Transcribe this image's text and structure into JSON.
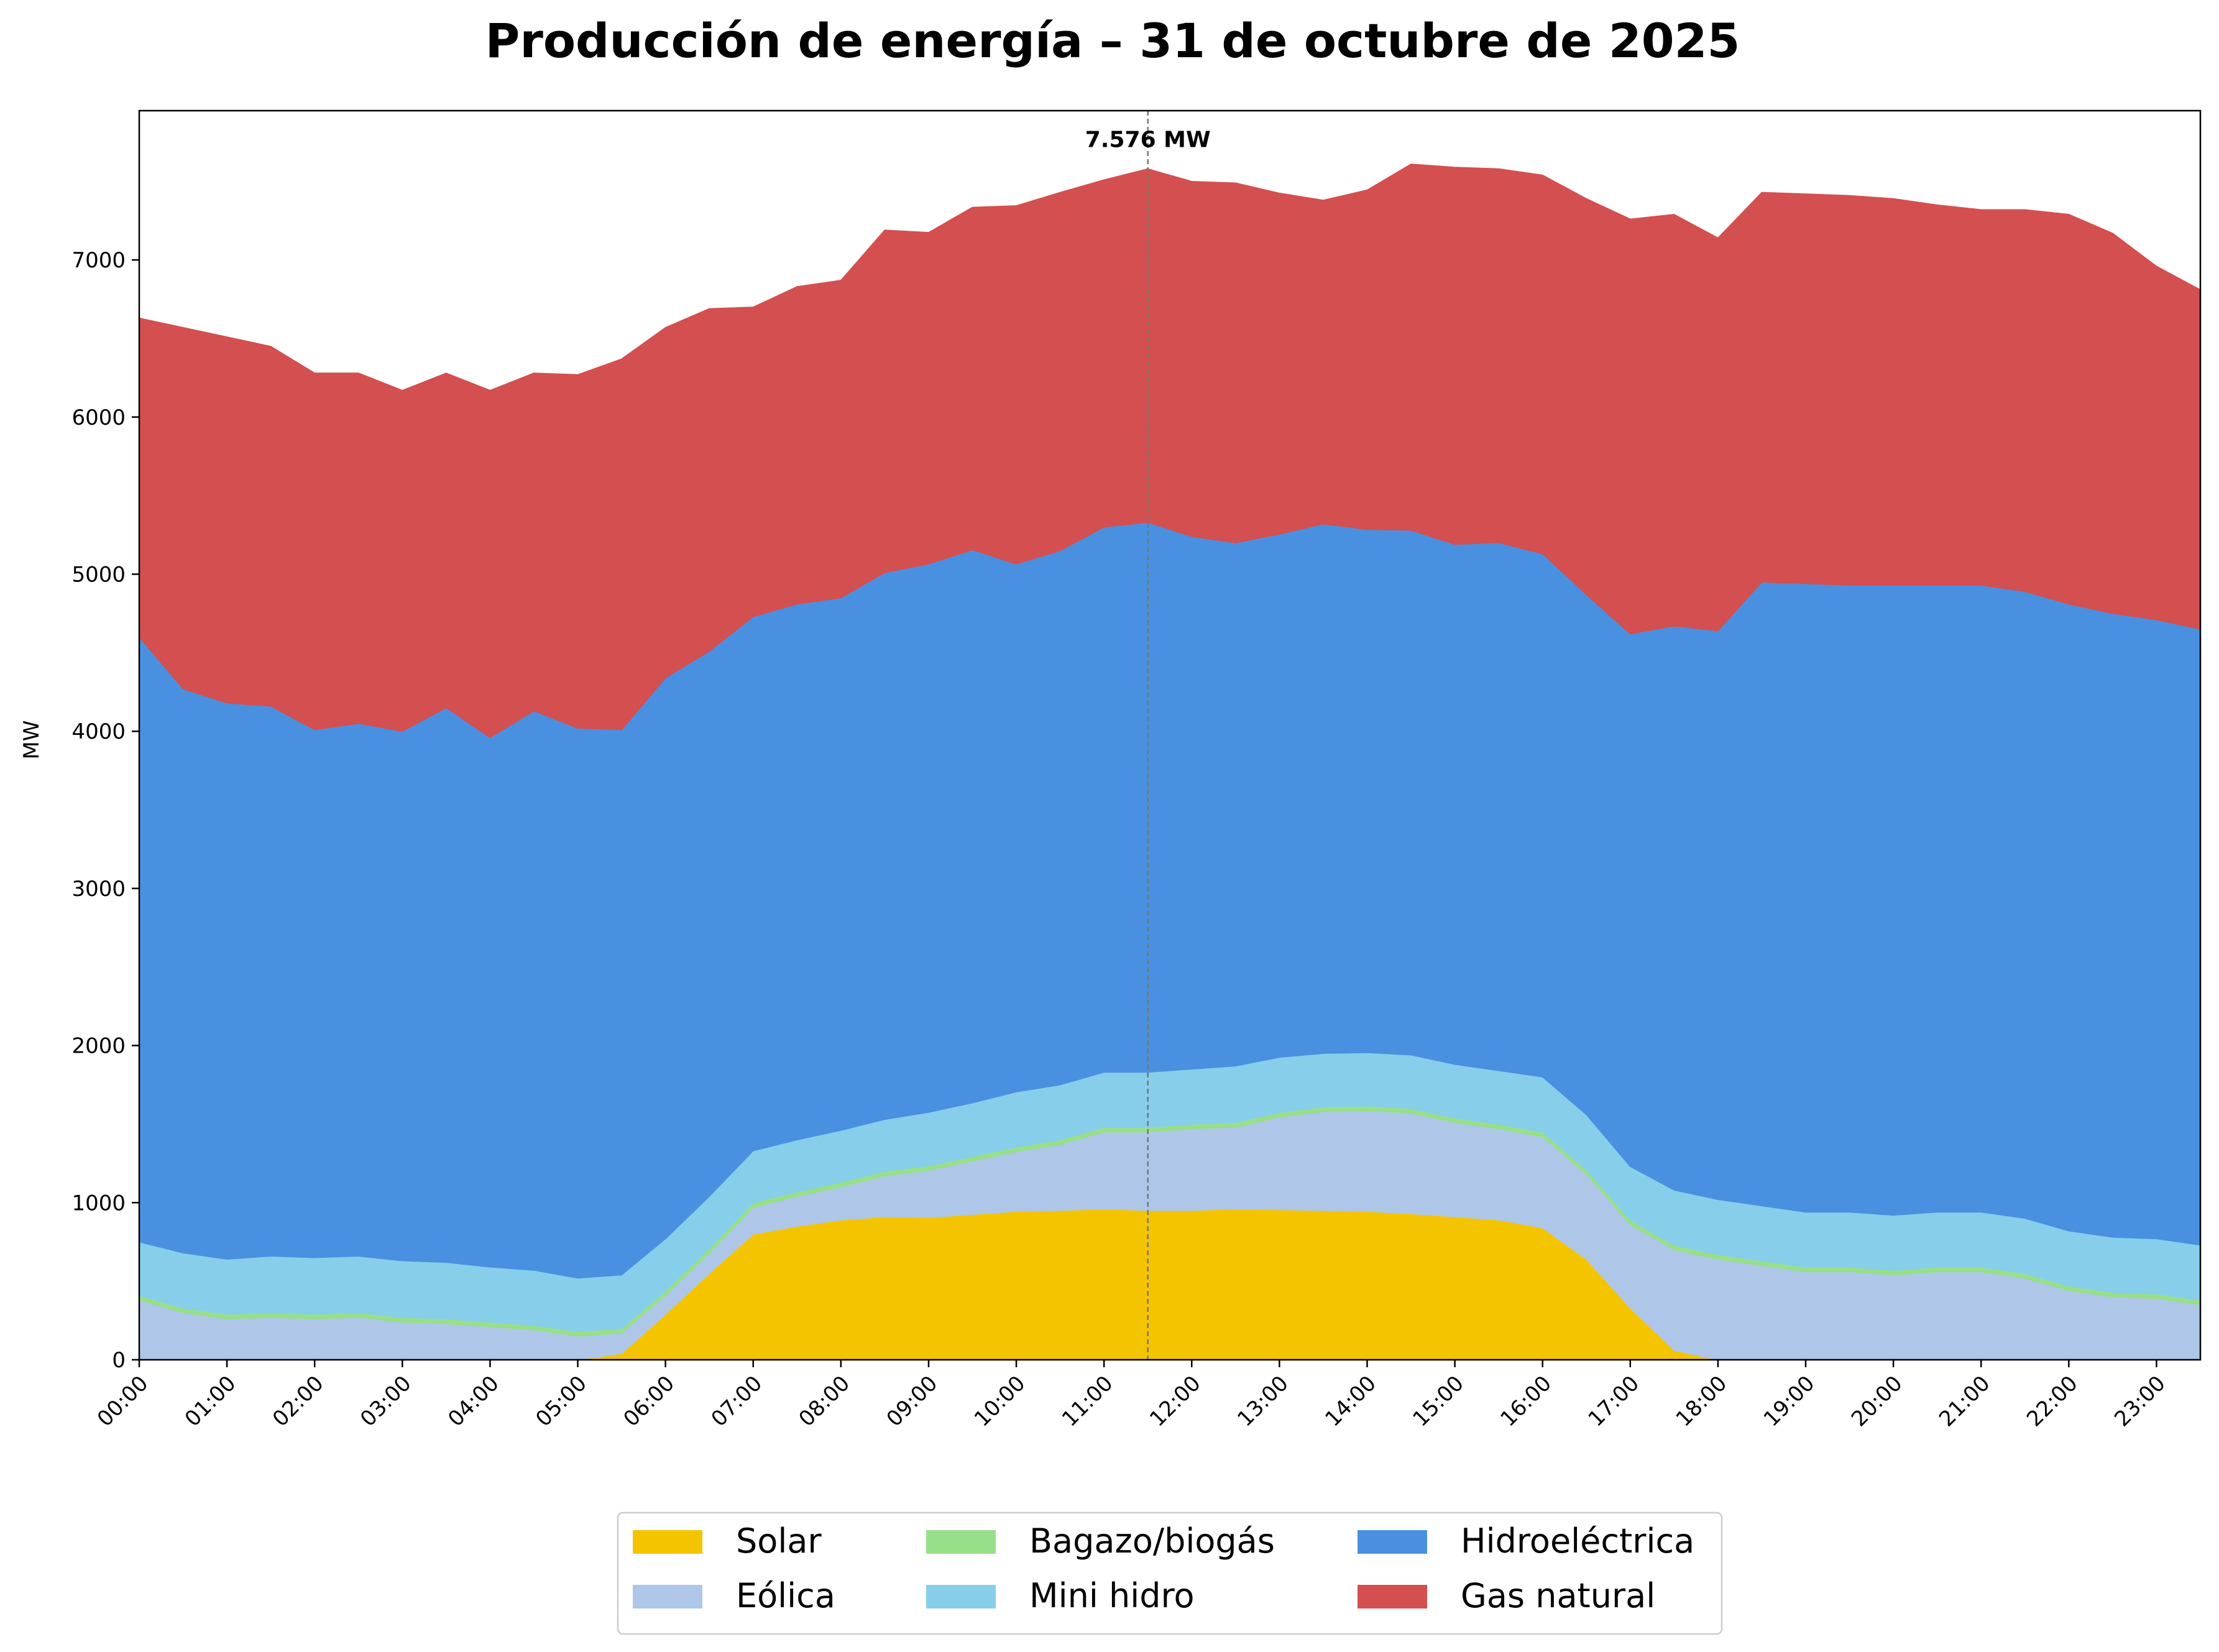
{
  "chart_data": {
    "type": "area",
    "stacked": true,
    "title": "Producción de energía – 31 de octubre de 2025",
    "xlabel": "",
    "ylabel": "MW",
    "ylim": [
      0,
      7950
    ],
    "yticks": [
      0,
      1000,
      2000,
      3000,
      4000,
      5000,
      6000,
      7000
    ],
    "ytick_labels": [
      "0",
      "1000",
      "2000",
      "3000",
      "4000",
      "5000",
      "6000",
      "7000"
    ],
    "x_labels": [
      "00:00",
      "01:00",
      "02:00",
      "03:00",
      "04:00",
      "05:00",
      "06:00",
      "07:00",
      "08:00",
      "09:00",
      "10:00",
      "11:00",
      "12:00",
      "13:00",
      "14:00",
      "15:00",
      "16:00",
      "17:00",
      "18:00",
      "19:00",
      "20:00",
      "21:00",
      "22:00",
      "23:00"
    ],
    "x": [
      "00:00",
      "00:30",
      "01:00",
      "01:30",
      "02:00",
      "02:30",
      "03:00",
      "03:30",
      "04:00",
      "04:30",
      "05:00",
      "05:30",
      "06:00",
      "06:30",
      "07:00",
      "07:30",
      "08:00",
      "08:30",
      "09:00",
      "09:30",
      "10:00",
      "10:30",
      "11:00",
      "11:30",
      "12:00",
      "12:30",
      "13:00",
      "13:30",
      "14:00",
      "14:30",
      "15:00",
      "15:30",
      "16:00",
      "16:30",
      "17:00",
      "17:30",
      "18:00",
      "18:30",
      "19:00",
      "19:30",
      "20:00",
      "20:30",
      "21:00",
      "21:30",
      "22:00",
      "22:30",
      "23:00",
      "23:30"
    ],
    "legend_position": "bottom-center",
    "legend_order": [
      "Solar",
      "Eólica",
      "Bagazo/biogás",
      "Mini hidro",
      "Hidroeléctrica",
      "Gas natural"
    ],
    "series": [
      {
        "name": "Solar",
        "color": "#f5c400",
        "values": [
          0,
          0,
          0,
          0,
          0,
          0,
          0,
          0,
          0,
          0,
          0,
          40,
          290,
          550,
          800,
          850,
          890,
          910,
          905,
          925,
          945,
          950,
          960,
          950,
          950,
          960,
          955,
          950,
          945,
          930,
          910,
          890,
          840,
          640,
          330,
          60,
          0,
          0,
          0,
          0,
          0,
          0,
          0,
          0,
          0,
          0,
          0,
          0
        ]
      },
      {
        "name": "Eólica",
        "color": "#aec7e8",
        "values": [
          380,
          300,
          260,
          270,
          260,
          270,
          240,
          230,
          210,
          190,
          150,
          130,
          120,
          130,
          170,
          190,
          210,
          260,
          300,
          340,
          380,
          420,
          490,
          500,
          520,
          520,
          590,
          630,
          640,
          640,
          600,
          580,
          580,
          540,
          530,
          640,
          640,
          600,
          560,
          560,
          540,
          560,
          560,
          520,
          440,
          400,
          390,
          350
        ]
      },
      {
        "name": "Bagazo/biogás",
        "color": "#98df8a",
        "values": [
          30,
          30,
          30,
          30,
          30,
          30,
          30,
          30,
          30,
          30,
          30,
          30,
          30,
          30,
          30,
          30,
          30,
          30,
          30,
          30,
          30,
          30,
          30,
          30,
          30,
          30,
          30,
          30,
          30,
          30,
          30,
          30,
          30,
          30,
          30,
          30,
          30,
          30,
          30,
          30,
          30,
          30,
          30,
          30,
          30,
          30,
          30,
          30
        ]
      },
      {
        "name": "Mini hidro",
        "color": "#87ceeb",
        "values": [
          340,
          350,
          350,
          360,
          360,
          360,
          360,
          360,
          350,
          350,
          340,
          340,
          330,
          330,
          330,
          330,
          330,
          330,
          340,
          340,
          350,
          350,
          350,
          350,
          350,
          360,
          350,
          340,
          340,
          340,
          340,
          340,
          350,
          350,
          340,
          350,
          350,
          350,
          350,
          350,
          350,
          350,
          350,
          350,
          350,
          350,
          350,
          350
        ]
      },
      {
        "name": "Hidroeléctrica",
        "color": "#4a90e0",
        "values": [
          3850,
          3590,
          3540,
          3500,
          3360,
          3390,
          3370,
          3530,
          3370,
          3560,
          3500,
          3470,
          3570,
          3470,
          3400,
          3410,
          3390,
          3480,
          3490,
          3520,
          3360,
          3400,
          3470,
          3500,
          3390,
          3330,
          3330,
          3370,
          3330,
          3340,
          3310,
          3360,
          3330,
          3310,
          3390,
          3590,
          3620,
          3970,
          4000,
          3990,
          4010,
          3990,
          3990,
          3990,
          3990,
          3970,
          3940,
          3920
        ]
      },
      {
        "name": "Gas natural",
        "color": "#d44f4f",
        "values": [
          2030,
          2300,
          2330,
          2290,
          2270,
          2230,
          2170,
          2130,
          2210,
          2150,
          2250,
          2360,
          2230,
          2180,
          1970,
          2020,
          2020,
          2180,
          2110,
          2180,
          2280,
          2280,
          2210,
          2250,
          2260,
          2290,
          2170,
          2060,
          2160,
          2330,
          2400,
          2380,
          2410,
          2520,
          2640,
          2620,
          2500,
          2480,
          2480,
          2480,
          2460,
          2420,
          2390,
          2430,
          2480,
          2420,
          2250,
          2160
        ]
      }
    ],
    "annotations": [
      {
        "text": "7.576 MW",
        "x": "11:30",
        "y": 7576,
        "vline": true
      }
    ],
    "grid": false
  }
}
